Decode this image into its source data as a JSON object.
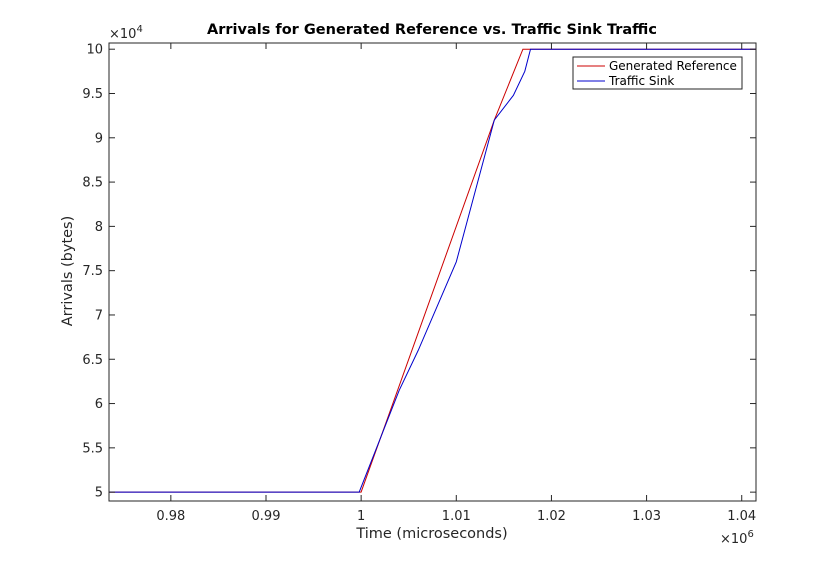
{
  "chart_data": {
    "type": "line",
    "title": "Arrivals for Generated Reference vs. Traffic Sink Traffic",
    "xlabel": "Time (microseconds)",
    "ylabel": "Arrivals (bytes)",
    "xlim": [
      973500,
      1041500
    ],
    "ylim": [
      49000,
      100700
    ],
    "x_exponent": "6",
    "y_exponent": "4",
    "x_ticks": [
      980000,
      990000,
      1000000,
      1010000,
      1020000,
      1030000,
      1040000
    ],
    "x_tick_labels": [
      "0.98",
      "0.99",
      "1",
      "1.01",
      "1.02",
      "1.03",
      "1.04"
    ],
    "y_ticks": [
      50000,
      55000,
      60000,
      65000,
      70000,
      75000,
      80000,
      85000,
      90000,
      95000,
      100000
    ],
    "y_tick_labels": [
      "5",
      "5.5",
      "6",
      "6.5",
      "7",
      "7.5",
      "8",
      "8.5",
      "9",
      "9.5",
      "10"
    ],
    "grid": false,
    "legend_position": "top-right",
    "series": [
      {
        "name": "Generated Reference",
        "color": "#cc0000",
        "x": [
          973500,
          1000000,
          1005000,
          1014000,
          1017000,
          1041500
        ],
        "y": [
          50000,
          50000,
          65000,
          92000,
          100000,
          100000
        ]
      },
      {
        "name": "Traffic Sink",
        "color": "#0000cc",
        "x": [
          973500,
          999800,
          1004000,
          1006000,
          1010000,
          1014000,
          1016000,
          1017200,
          1017800,
          1041500
        ],
        "y": [
          50000,
          50000,
          61500,
          66000,
          76000,
          92000,
          94800,
          97500,
          100000,
          100000
        ]
      }
    ]
  }
}
